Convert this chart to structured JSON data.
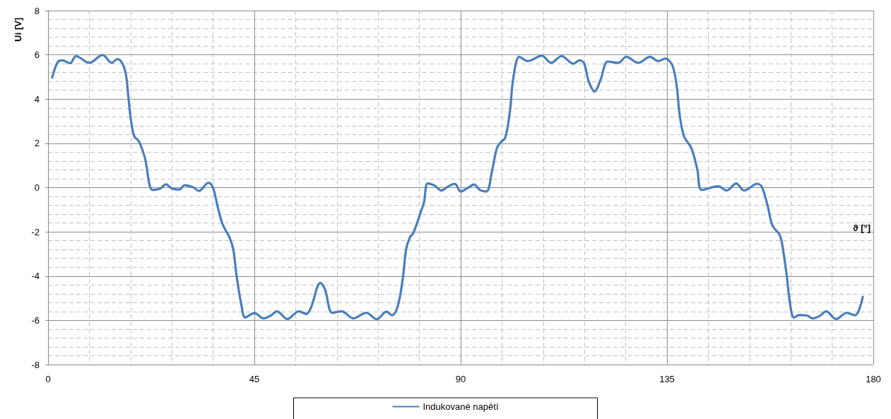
{
  "chart_data": {
    "type": "line",
    "xlabel": "ϑ [°]",
    "ylabel": "Ui [V]",
    "x": [
      0.9,
      2.1,
      3.1,
      4.8,
      6.1,
      9.0,
      11.9,
      13.9,
      15.1,
      16.2,
      17.0,
      17.5,
      18.0,
      18.8,
      19.8,
      21.1,
      22.8,
      24.5,
      25.7,
      27.0,
      28.6,
      29.8,
      31.6,
      32.9,
      35.0,
      36.0,
      37.0,
      38.1,
      39.6,
      40.4,
      41.1,
      42.2,
      43.0,
      45.0,
      47.0,
      48.6,
      49.9,
      52.2,
      54.7,
      56.3,
      57.3,
      59.4,
      60.4,
      62.0,
      64.0,
      66.6,
      69.4,
      71.7,
      73.8,
      75.0,
      76.3,
      77.4,
      78.1,
      78.9,
      79.7,
      81.5,
      82.0,
      82.8,
      84.3,
      85.8,
      87.1,
      88.7,
      90.0,
      91.5,
      92.9,
      94.2,
      95.6,
      96.9,
      97.9,
      98.7,
      99.7,
      100.7,
      101.5,
      102.8,
      104.6,
      107.7,
      109.7,
      112.0,
      114.6,
      115.9,
      116.9,
      117.9,
      119.2,
      120.5,
      122.1,
      124.4,
      126.1,
      128.7,
      131.3,
      133.1,
      134.6,
      136.2,
      137.2,
      137.7,
      138.7,
      140.3,
      141.6,
      142.6,
      146.2,
      148.0,
      150.1,
      151.8,
      154.7,
      155.7,
      157.0,
      158.0,
      159.6,
      160.3,
      161.1,
      161.9,
      162.7,
      163.9,
      165.5,
      166.7,
      168.3,
      169.7,
      171.9,
      174.2,
      176.0,
      176.8,
      177.7
    ],
    "series": [
      {
        "name": "Indukované napětí",
        "color": "#4a7ebb",
        "values": [
          4.98,
          5.67,
          5.75,
          5.62,
          5.94,
          5.64,
          5.99,
          5.64,
          5.81,
          5.62,
          5.09,
          4.13,
          3.17,
          2.32,
          2.1,
          1.36,
          -0.11,
          -0.04,
          0.15,
          -0.04,
          -0.09,
          0.11,
          0.02,
          -0.15,
          0.22,
          -0.02,
          -0.87,
          -1.67,
          -2.26,
          -2.79,
          -3.96,
          -5.34,
          -5.87,
          -5.67,
          -5.91,
          -5.78,
          -5.59,
          -5.94,
          -5.59,
          -5.71,
          -5.45,
          -4.31,
          -4.6,
          -5.66,
          -5.59,
          -5.91,
          -5.66,
          -5.95,
          -5.61,
          -5.77,
          -5.34,
          -4.06,
          -2.79,
          -2.26,
          -2.04,
          -0.98,
          -0.66,
          0.19,
          0.09,
          -0.13,
          0.03,
          0.17,
          -0.18,
          -0.02,
          0.14,
          -0.11,
          -0.18,
          0.83,
          1.79,
          2.04,
          2.25,
          3.38,
          4.98,
          5.91,
          5.72,
          5.96,
          5.64,
          5.94,
          5.6,
          5.75,
          5.62,
          4.82,
          4.34,
          4.87,
          5.7,
          5.64,
          5.91,
          5.64,
          5.91,
          5.72,
          5.83,
          5.51,
          4.45,
          3.38,
          2.32,
          1.79,
          0.83,
          -0.11,
          0.06,
          -0.13,
          0.19,
          -0.13,
          0.17,
          0.03,
          -0.87,
          -1.72,
          -2.15,
          -2.79,
          -3.96,
          -5.34,
          -5.87,
          -5.76,
          -5.78,
          -5.91,
          -5.8,
          -5.59,
          -5.94,
          -5.66,
          -5.77,
          -5.57,
          -4.94
        ]
      }
    ],
    "xlim": [
      0,
      180
    ],
    "xticks": [
      0,
      45,
      90,
      135,
      180
    ],
    "ylim": [
      -8,
      8
    ],
    "yticks": [
      -8,
      -6,
      -4,
      -2,
      0,
      2,
      4,
      6,
      8
    ],
    "grid": true,
    "legend": "bottom",
    "marker": "none",
    "line_style": "solid"
  }
}
